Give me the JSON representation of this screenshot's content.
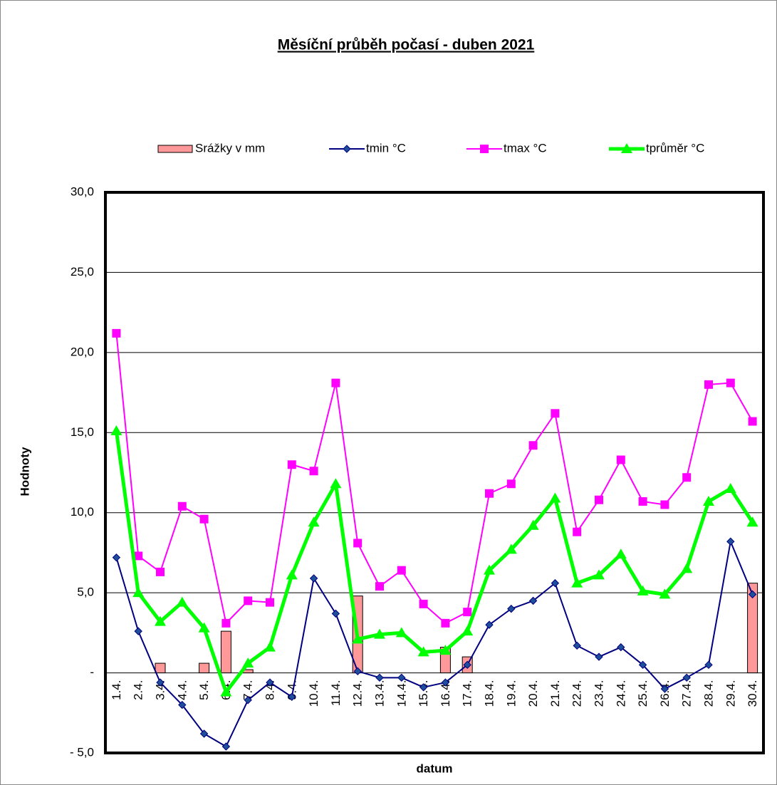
{
  "chart_data": {
    "type": "combo",
    "title": "Měsíční průběh počasí - duben 2021",
    "y_label": "Hodnoty",
    "x_label": "datum",
    "categories": [
      "1.4.",
      "2.4.",
      "3.4.",
      "4.4.",
      "5.4.",
      "6.4.",
      "7.4.",
      "8.4.",
      "9.4.",
      "10.4.",
      "11.4.",
      "12.4.",
      "13.4.",
      "14.4.",
      "15.4.",
      "16.4.",
      "17.4.",
      "18.4.",
      "19.4.",
      "20.4.",
      "21.4.",
      "22.4.",
      "23.4.",
      "24.4.",
      "25.4.",
      "26.4.",
      "27.4.",
      "28.4.",
      "29.4.",
      "30.4."
    ],
    "series": [
      {
        "name": "Srážky v mm",
        "type": "bar",
        "color": "#ff9999",
        "values": [
          0,
          0,
          0.6,
          0,
          0.6,
          2.6,
          0.2,
          0,
          0,
          0,
          0,
          4.8,
          0,
          0,
          0,
          1.6,
          1.0,
          0,
          0,
          0,
          0,
          0,
          0,
          0,
          0,
          0,
          0,
          0,
          0,
          5.6
        ]
      },
      {
        "name": "tmin °C",
        "type": "line",
        "marker": "diamond",
        "color": "#000080",
        "values": [
          7.2,
          2.6,
          -0.6,
          -2.0,
          -3.8,
          -4.6,
          -1.7,
          -0.6,
          -1.5,
          5.9,
          3.7,
          0.1,
          -0.3,
          -0.3,
          -0.9,
          -0.6,
          0.5,
          3.0,
          4.0,
          4.5,
          5.6,
          1.7,
          1.0,
          1.6,
          0.5,
          -1.0,
          -0.3,
          0.5,
          8.2,
          4.9
        ]
      },
      {
        "name": "tmax °C",
        "type": "line",
        "marker": "square",
        "color": "#ff00ff",
        "values": [
          21.2,
          7.3,
          6.3,
          10.4,
          9.6,
          3.1,
          4.5,
          4.4,
          13.0,
          12.6,
          18.1,
          8.1,
          5.4,
          6.4,
          4.3,
          3.1,
          3.8,
          11.2,
          11.8,
          14.2,
          16.2,
          8.8,
          10.8,
          13.3,
          10.7,
          10.5,
          12.2,
          18.0,
          18.1,
          15.7
        ]
      },
      {
        "name": "tprůměr °C",
        "type": "line",
        "marker": "triangle",
        "color": "#00ff00",
        "values": [
          15.1,
          5.0,
          3.2,
          4.4,
          2.8,
          -1.2,
          0.6,
          1.6,
          6.1,
          9.4,
          11.8,
          2.1,
          2.4,
          2.5,
          1.3,
          1.4,
          2.6,
          6.4,
          7.7,
          9.2,
          10.9,
          5.6,
          6.1,
          7.4,
          5.1,
          4.9,
          6.5,
          10.7,
          11.5,
          9.4
        ]
      }
    ],
    "ylim": [
      -5,
      30
    ],
    "yticks": [
      {
        "value": -5,
        "label": "- 5,0"
      },
      {
        "value": 0,
        "label": "-"
      },
      {
        "value": 5,
        "label": "5,0"
      },
      {
        "value": 10,
        "label": "10,0"
      },
      {
        "value": 15,
        "label": "15,0"
      },
      {
        "value": 20,
        "label": "20,0"
      },
      {
        "value": 25,
        "label": "25,0"
      },
      {
        "value": 30,
        "label": "30,0"
      }
    ],
    "grid": true,
    "legend": "top"
  }
}
